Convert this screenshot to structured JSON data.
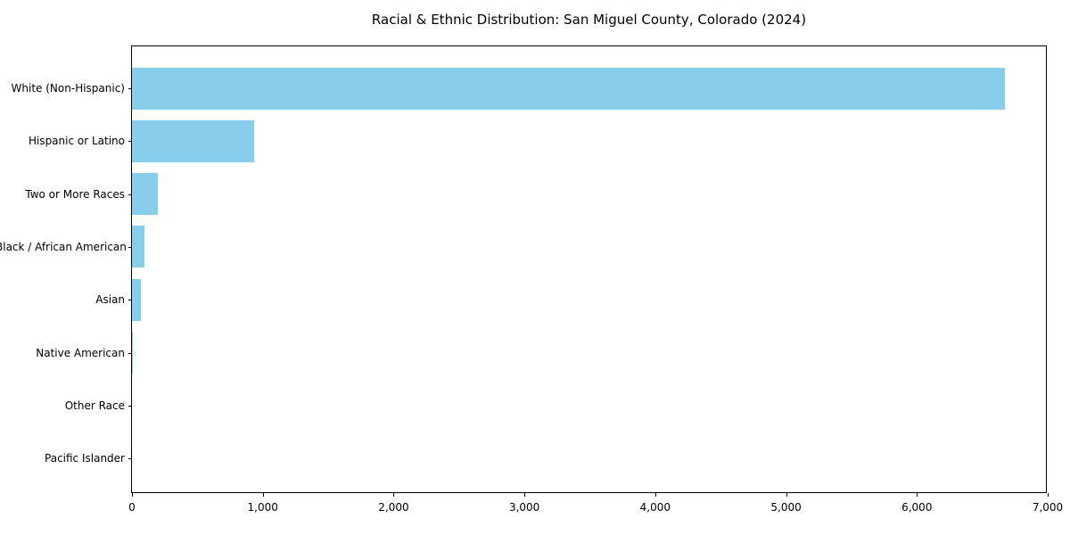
{
  "chart_data": {
    "type": "bar",
    "orientation": "horizontal",
    "title": "Racial & Ethnic Distribution: San Miguel County, Colorado (2024)",
    "categories": [
      "White (Non-Hispanic)",
      "Hispanic or Latino",
      "Two or More Races",
      "Black / African American",
      "Asian",
      "Native American",
      "Other Race",
      "Pacific Islander"
    ],
    "values": [
      6670,
      935,
      200,
      95,
      65,
      10,
      0,
      0
    ],
    "xlabel": "",
    "ylabel": "",
    "xlim": [
      0,
      7000
    ],
    "x_ticks": [
      0,
      1000,
      2000,
      3000,
      4000,
      5000,
      6000,
      7000
    ],
    "x_tick_labels": [
      "0",
      "1,000",
      "2,000",
      "3,000",
      "4,000",
      "5,000",
      "6,000",
      "7,000"
    ],
    "bar_color": "#87CEEB",
    "axis_color": "#000000",
    "background_color": "#FFFFFF",
    "grid": false,
    "legend": null
  }
}
